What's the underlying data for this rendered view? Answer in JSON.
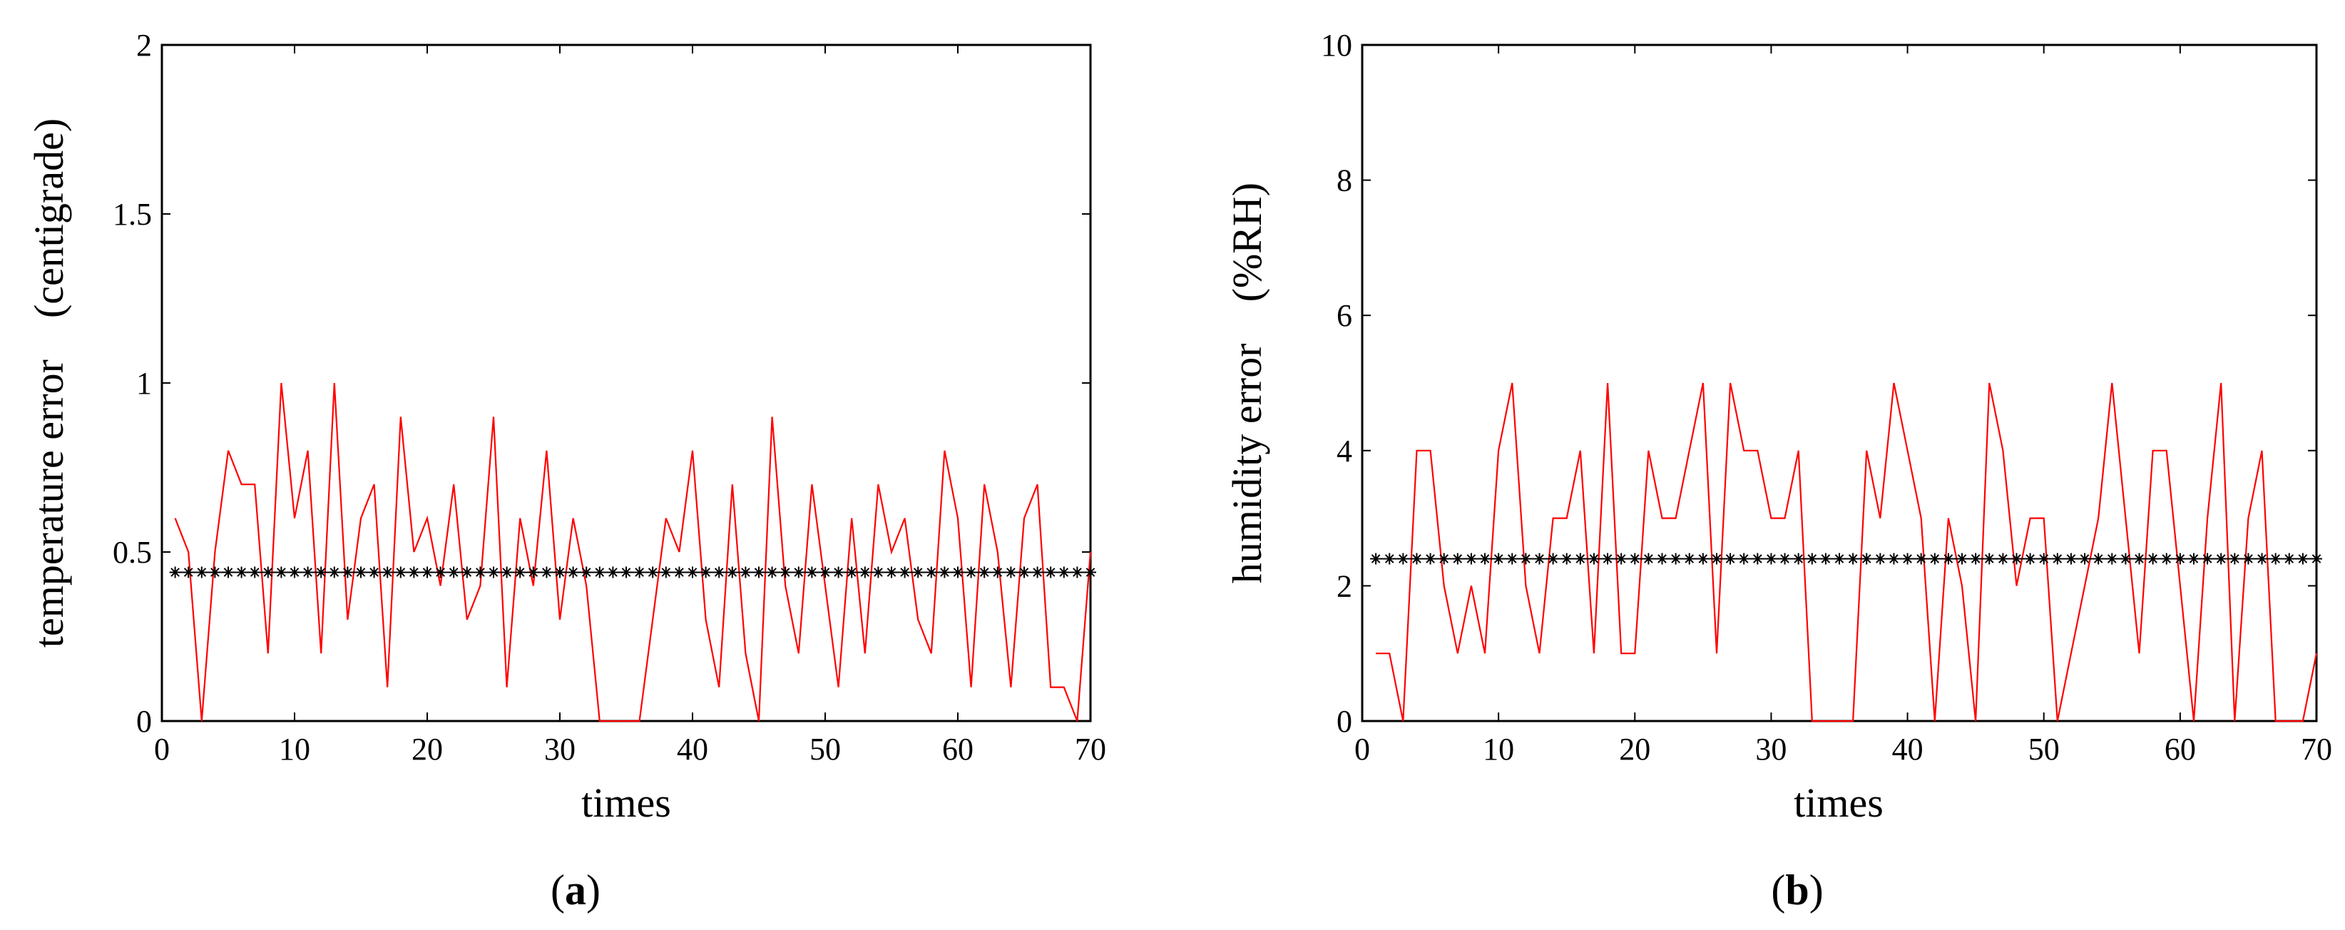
{
  "chart_data": [
    {
      "type": "line",
      "panel_label": "a",
      "xlabel": "times",
      "ylabel": "temperature error　(centigrade)",
      "xlim": [
        0,
        70
      ],
      "ylim": [
        0,
        2
      ],
      "xticks": [
        0,
        10,
        20,
        30,
        40,
        50,
        60,
        70
      ],
      "yticks": [
        0,
        0.5,
        1,
        1.5,
        2
      ],
      "ytick_labels": [
        "0",
        "0.5",
        "1",
        "1.5",
        "2"
      ],
      "grid": false,
      "series": [
        {
          "color": "#ff0000",
          "style": "line",
          "x": [
            1,
            2,
            3,
            4,
            5,
            6,
            7,
            8,
            9,
            10,
            11,
            12,
            13,
            14,
            15,
            16,
            17,
            18,
            19,
            20,
            21,
            22,
            23,
            24,
            25,
            26,
            27,
            28,
            29,
            30,
            31,
            32,
            33,
            34,
            35,
            36,
            37,
            38,
            39,
            40,
            41,
            42,
            43,
            44,
            45,
            46,
            47,
            48,
            49,
            50,
            51,
            52,
            53,
            54,
            55,
            56,
            57,
            58,
            59,
            60,
            61,
            62,
            63,
            64,
            65,
            66,
            67,
            68,
            69,
            70
          ],
          "values": [
            0.6,
            0.5,
            0.0,
            0.5,
            0.8,
            0.7,
            0.7,
            0.2,
            1.0,
            0.6,
            0.8,
            0.2,
            1.0,
            0.3,
            0.6,
            0.7,
            0.1,
            0.9,
            0.5,
            0.6,
            0.4,
            0.7,
            0.3,
            0.4,
            0.9,
            0.1,
            0.6,
            0.4,
            0.8,
            0.3,
            0.6,
            0.4,
            0.0,
            0.0,
            0.0,
            0.0,
            0.3,
            0.6,
            0.5,
            0.8,
            0.3,
            0.1,
            0.7,
            0.2,
            0.0,
            0.9,
            0.4,
            0.2,
            0.7,
            0.4,
            0.1,
            0.6,
            0.2,
            0.7,
            0.5,
            0.6,
            0.3,
            0.2,
            0.8,
            0.6,
            0.1,
            0.7,
            0.5,
            0.1,
            0.6,
            0.7,
            0.1,
            0.1,
            0.0,
            0.5
          ]
        },
        {
          "color": "#000000",
          "style": "asterisk-markers",
          "x": [
            1,
            2,
            3,
            4,
            5,
            6,
            7,
            8,
            9,
            10,
            11,
            12,
            13,
            14,
            15,
            16,
            17,
            18,
            19,
            20,
            21,
            22,
            23,
            24,
            25,
            26,
            27,
            28,
            29,
            30,
            31,
            32,
            33,
            34,
            35,
            36,
            37,
            38,
            39,
            40,
            41,
            42,
            43,
            44,
            45,
            46,
            47,
            48,
            49,
            50,
            51,
            52,
            53,
            54,
            55,
            56,
            57,
            58,
            59,
            60,
            61,
            62,
            63,
            64,
            65,
            66,
            67,
            68,
            69,
            70
          ],
          "constant_value": 0.44
        }
      ]
    },
    {
      "type": "line",
      "panel_label": "b",
      "xlabel": "times",
      "ylabel": "humidity error　(%RH)",
      "xlim": [
        0,
        70
      ],
      "ylim": [
        0,
        10
      ],
      "xticks": [
        0,
        10,
        20,
        30,
        40,
        50,
        60,
        70
      ],
      "yticks": [
        0,
        2,
        4,
        6,
        8,
        10
      ],
      "ytick_labels": [
        "0",
        "2",
        "4",
        "6",
        "8",
        "10"
      ],
      "grid": false,
      "series": [
        {
          "color": "#ff0000",
          "style": "line",
          "x": [
            1,
            2,
            3,
            4,
            5,
            6,
            7,
            8,
            9,
            10,
            11,
            12,
            13,
            14,
            15,
            16,
            17,
            18,
            19,
            20,
            21,
            22,
            23,
            24,
            25,
            26,
            27,
            28,
            29,
            30,
            31,
            32,
            33,
            34,
            35,
            36,
            37,
            38,
            39,
            40,
            41,
            42,
            43,
            44,
            45,
            46,
            47,
            48,
            49,
            50,
            51,
            52,
            53,
            54,
            55,
            56,
            57,
            58,
            59,
            60,
            61,
            62,
            63,
            64,
            65,
            66,
            67,
            68,
            69,
            70
          ],
          "values": [
            1,
            1,
            0,
            4,
            4,
            2,
            1,
            2,
            1,
            4,
            5,
            2,
            1,
            3,
            3,
            4,
            1,
            5,
            1,
            1,
            4,
            3,
            3,
            4,
            5,
            1,
            5,
            4,
            4,
            3,
            3,
            4,
            0,
            0,
            0,
            0,
            4,
            3,
            5,
            4,
            3,
            0,
            3,
            2,
            0,
            5,
            4,
            2,
            3,
            3,
            0,
            1,
            2,
            3,
            5,
            3,
            1,
            4,
            4,
            2,
            0,
            3,
            5,
            0,
            3,
            4,
            0,
            0,
            0,
            1
          ]
        },
        {
          "color": "#000000",
          "style": "asterisk-markers",
          "x": [
            1,
            2,
            3,
            4,
            5,
            6,
            7,
            8,
            9,
            10,
            11,
            12,
            13,
            14,
            15,
            16,
            17,
            18,
            19,
            20,
            21,
            22,
            23,
            24,
            25,
            26,
            27,
            28,
            29,
            30,
            31,
            32,
            33,
            34,
            35,
            36,
            37,
            38,
            39,
            40,
            41,
            42,
            43,
            44,
            45,
            46,
            47,
            48,
            49,
            50,
            51,
            52,
            53,
            54,
            55,
            56,
            57,
            58,
            59,
            60,
            61,
            62,
            63,
            64,
            65,
            66,
            67,
            68,
            69,
            70
          ],
          "constant_value": 2.4
        }
      ]
    }
  ]
}
